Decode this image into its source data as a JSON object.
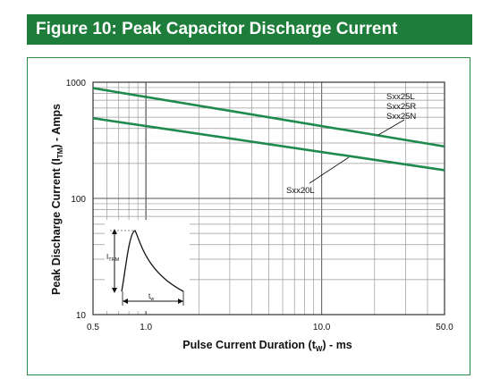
{
  "title": "Figure 10: Peak Capacitor Discharge Current",
  "chart_data": {
    "type": "line",
    "title": "Figure 10: Peak Capacitor Discharge Current",
    "xlabel": "Pulse Current Duration (t",
    "xlabel_sub": "W",
    "xlabel_suffix": ") - ms",
    "ylabel": "Peak Discharge Current (I",
    "ylabel_sub": "TM",
    "ylabel_suffix": ") - Amps",
    "x_scale": "log",
    "y_scale": "log",
    "xlim": [
      0.5,
      50.0
    ],
    "ylim": [
      10,
      1000
    ],
    "grid": true,
    "x_tick_labels": [
      {
        "value": 0.5,
        "label": "0.5"
      },
      {
        "value": 1.0,
        "label": "1.0"
      },
      {
        "value": 10.0,
        "label": "10.0"
      },
      {
        "value": 50.0,
        "label": "50.0"
      }
    ],
    "y_tick_labels": [
      {
        "value": 10,
        "label": "10"
      },
      {
        "value": 100,
        "label": "100"
      },
      {
        "value": 1000,
        "label": "1000"
      }
    ],
    "series": [
      {
        "labels": [
          "Sxx25L",
          "Sxx25R",
          "Sxx25N"
        ],
        "color": "#1e8a4c",
        "x": [
          0.5,
          50.0
        ],
        "y": [
          890,
          280
        ]
      },
      {
        "labels": [
          "Sxx20L"
        ],
        "color": "#1e8a4c",
        "x": [
          0.5,
          50.0
        ],
        "y": [
          490,
          175
        ]
      }
    ],
    "inset": {
      "peak_label": "I",
      "peak_label_sub": "TRM",
      "width_label": "t",
      "width_label_sub": "w"
    }
  }
}
